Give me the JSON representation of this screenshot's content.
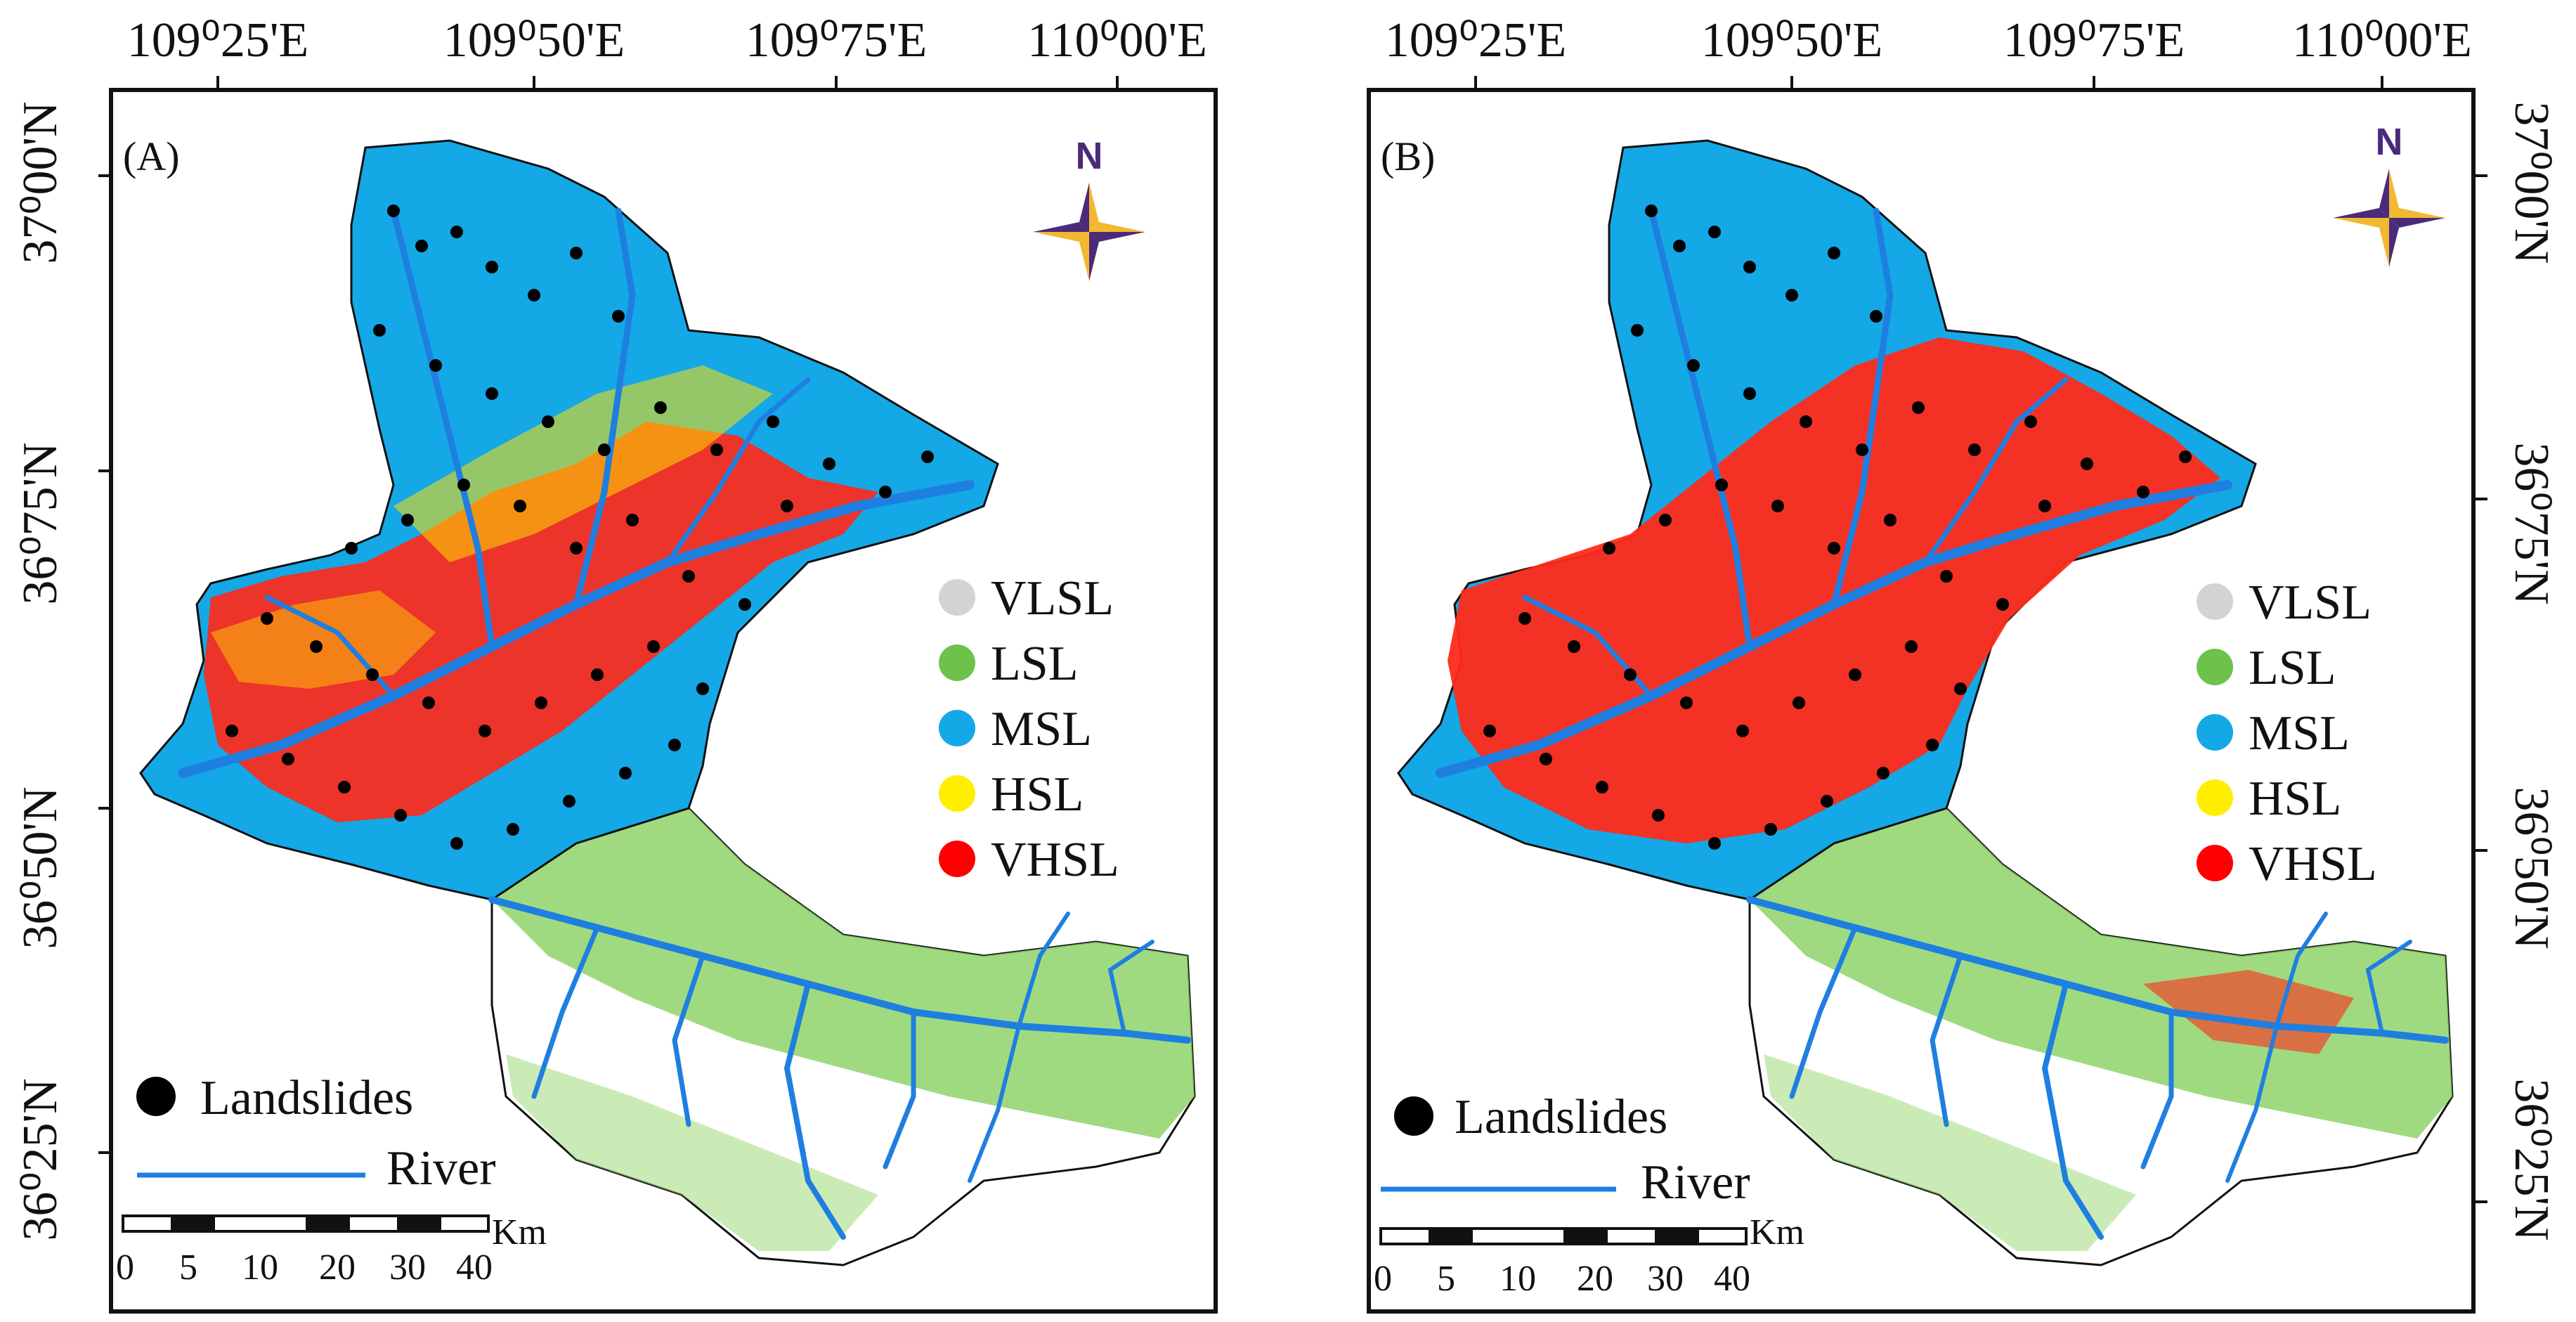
{
  "maps": [
    {
      "label": "(A)",
      "lon_labels": [
        "109⁰25'E",
        "109⁰50'E",
        "109⁰75'E",
        "110⁰00'E"
      ],
      "lat_labels": [
        "37⁰00'N",
        "36⁰75'N",
        "36⁰50'N",
        "36⁰25'N"
      ],
      "north": "N",
      "scale_unit": "Km",
      "scale_ticks": [
        "0",
        "5",
        "10",
        "20",
        "30",
        "40"
      ]
    },
    {
      "label": "(B)",
      "lon_labels": [
        "109⁰25'E",
        "109⁰50'E",
        "109⁰75'E",
        "110⁰00'E"
      ],
      "lat_labels": [
        "37⁰00'N",
        "36⁰75'N",
        "36⁰50'N",
        "36⁰25'N"
      ],
      "north": "N",
      "scale_unit": "Km",
      "scale_ticks": [
        "0",
        "5",
        "10",
        "20",
        "30",
        "40"
      ]
    }
  ],
  "legend": {
    "classes": [
      {
        "label": "VLSL",
        "color": "#d3d3d3"
      },
      {
        "label": "LSL",
        "color": "#6cc24a"
      },
      {
        "label": "MSL",
        "color": "#14a8e6"
      },
      {
        "label": "HSL",
        "color": "#ffee00"
      },
      {
        "label": "VHSL",
        "color": "#ff0000"
      }
    ],
    "landslides_label": "Landslides",
    "river_label": "River"
  },
  "colors": {
    "landslide": "#000000",
    "river": "#1f7fe0",
    "north_star_gold": "#f2b830",
    "north_star_purple": "#4b2a7a",
    "frame": "#111111"
  }
}
